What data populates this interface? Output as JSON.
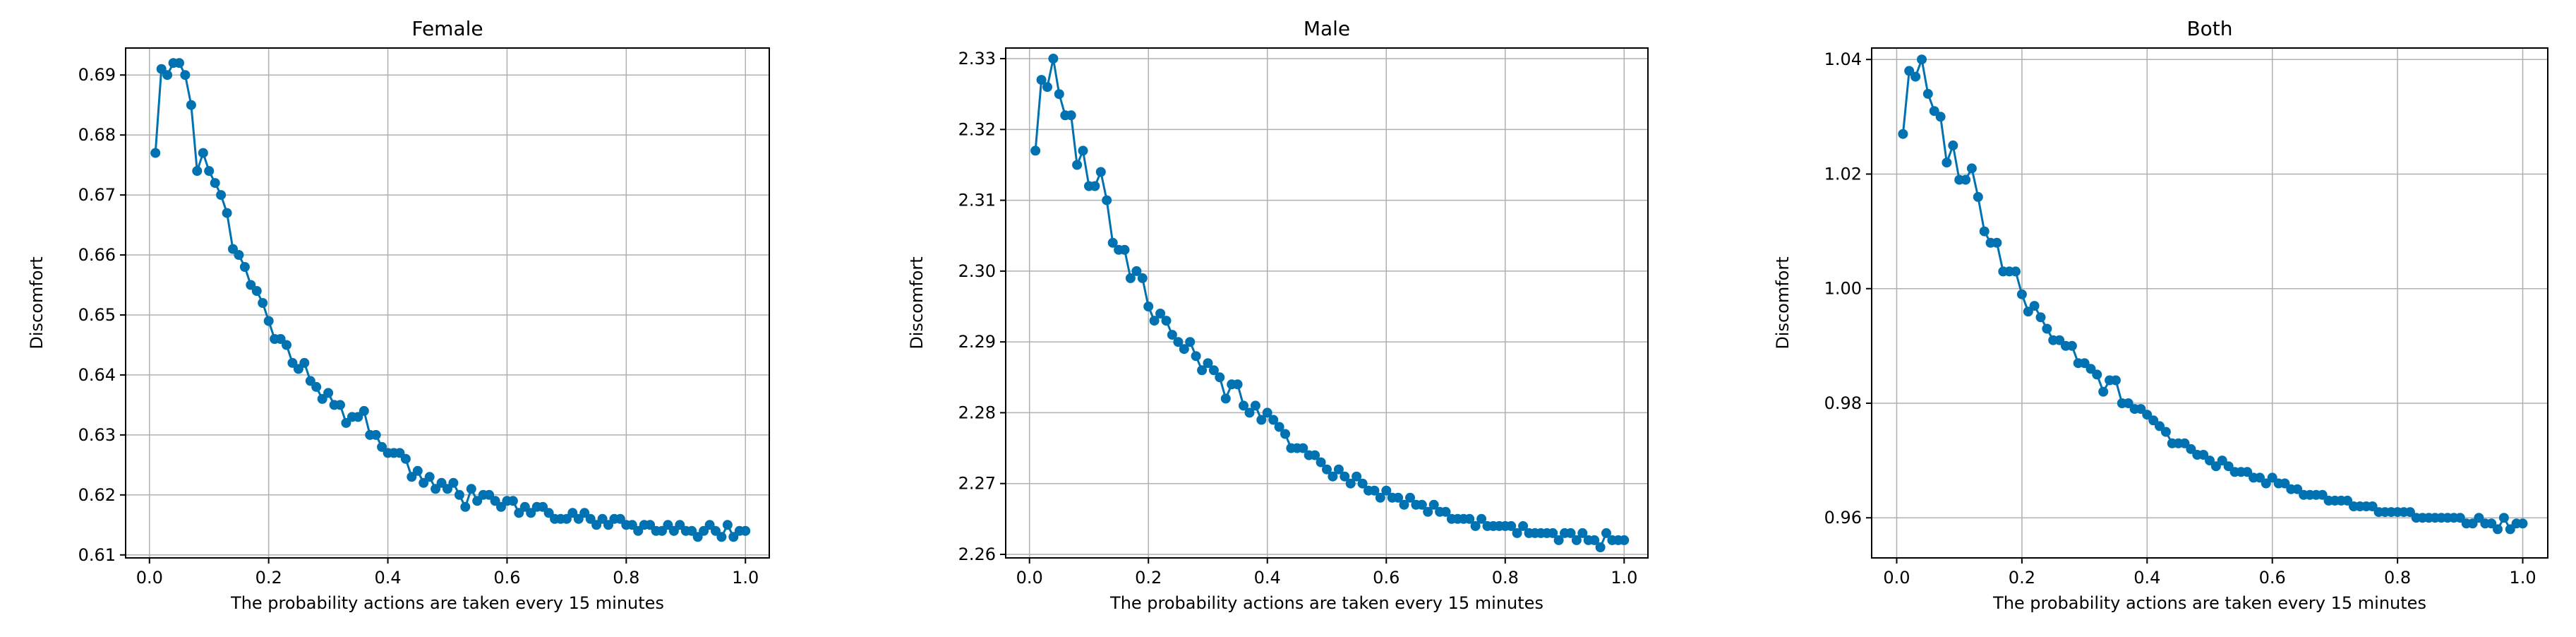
{
  "chart_data": [
    {
      "type": "line",
      "title": "Female",
      "xlabel": "The probability actions are taken every 15 minutes",
      "ylabel": "Discomfort",
      "xlim": [
        -0.04,
        1.04
      ],
      "ylim": [
        0.6095,
        0.6945
      ],
      "xticks": [
        0.0,
        0.2,
        0.4,
        0.6,
        0.8,
        1.0
      ],
      "xtick_labels": [
        "0.0",
        "0.2",
        "0.4",
        "0.6",
        "0.8",
        "1.0"
      ],
      "yticks": [
        0.61,
        0.62,
        0.63,
        0.64,
        0.65,
        0.66,
        0.67,
        0.68,
        0.69
      ],
      "ytick_labels": [
        "0.61",
        "0.62",
        "0.63",
        "0.64",
        "0.65",
        "0.66",
        "0.67",
        "0.68",
        "0.69"
      ],
      "grid": true,
      "color": "#0072b2",
      "x": [
        0.01,
        0.02,
        0.03,
        0.04,
        0.05,
        0.06,
        0.07,
        0.08,
        0.09,
        0.1,
        0.11,
        0.12,
        0.13,
        0.14,
        0.15,
        0.16,
        0.17,
        0.18,
        0.19,
        0.2,
        0.21,
        0.22,
        0.23,
        0.24,
        0.25,
        0.26,
        0.27,
        0.28,
        0.29,
        0.3,
        0.31,
        0.32,
        0.33,
        0.34,
        0.35,
        0.36,
        0.37,
        0.38,
        0.39,
        0.4,
        0.41,
        0.42,
        0.43,
        0.44,
        0.45,
        0.46,
        0.47,
        0.48,
        0.49,
        0.5,
        0.51,
        0.52,
        0.53,
        0.54,
        0.55,
        0.56,
        0.57,
        0.58,
        0.59,
        0.6,
        0.61,
        0.62,
        0.63,
        0.64,
        0.65,
        0.66,
        0.67,
        0.68,
        0.69,
        0.7,
        0.71,
        0.72,
        0.73,
        0.74,
        0.75,
        0.76,
        0.77,
        0.78,
        0.79,
        0.8,
        0.81,
        0.82,
        0.83,
        0.84,
        0.85,
        0.86,
        0.87,
        0.88,
        0.89,
        0.9,
        0.91,
        0.92,
        0.93,
        0.94,
        0.95,
        0.96,
        0.97,
        0.98,
        0.99,
        1.0
      ],
      "y": [
        0.677,
        0.691,
        0.69,
        0.692,
        0.692,
        0.69,
        0.685,
        0.674,
        0.677,
        0.674,
        0.672,
        0.67,
        0.667,
        0.661,
        0.66,
        0.658,
        0.655,
        0.654,
        0.652,
        0.649,
        0.646,
        0.646,
        0.645,
        0.642,
        0.641,
        0.642,
        0.639,
        0.638,
        0.636,
        0.637,
        0.635,
        0.635,
        0.632,
        0.633,
        0.633,
        0.634,
        0.63,
        0.63,
        0.628,
        0.627,
        0.627,
        0.627,
        0.626,
        0.623,
        0.624,
        0.622,
        0.623,
        0.621,
        0.622,
        0.621,
        0.622,
        0.62,
        0.618,
        0.621,
        0.619,
        0.62,
        0.62,
        0.619,
        0.618,
        0.619,
        0.619,
        0.617,
        0.618,
        0.617,
        0.618,
        0.618,
        0.617,
        0.616,
        0.616,
        0.616,
        0.617,
        0.616,
        0.617,
        0.616,
        0.615,
        0.616,
        0.615,
        0.616,
        0.616,
        0.615,
        0.615,
        0.614,
        0.615,
        0.615,
        0.614,
        0.614,
        0.615,
        0.614,
        0.615,
        0.614,
        0.614,
        0.613,
        0.614,
        0.615,
        0.614,
        0.613,
        0.615,
        0.613,
        0.614,
        0.614
      ]
    },
    {
      "type": "line",
      "title": "Male",
      "xlabel": "The probability actions are taken every 15 minutes",
      "ylabel": "Discomfort",
      "xlim": [
        -0.04,
        1.04
      ],
      "ylim": [
        2.2595,
        2.3315
      ],
      "xticks": [
        0.0,
        0.2,
        0.4,
        0.6,
        0.8,
        1.0
      ],
      "xtick_labels": [
        "0.0",
        "0.2",
        "0.4",
        "0.6",
        "0.8",
        "1.0"
      ],
      "yticks": [
        2.26,
        2.27,
        2.28,
        2.29,
        2.3,
        2.31,
        2.32,
        2.33
      ],
      "ytick_labels": [
        "2.26",
        "2.27",
        "2.28",
        "2.29",
        "2.30",
        "2.31",
        "2.32",
        "2.33"
      ],
      "grid": true,
      "color": "#0072b2",
      "x": [
        0.01,
        0.02,
        0.03,
        0.04,
        0.05,
        0.06,
        0.07,
        0.08,
        0.09,
        0.1,
        0.11,
        0.12,
        0.13,
        0.14,
        0.15,
        0.16,
        0.17,
        0.18,
        0.19,
        0.2,
        0.21,
        0.22,
        0.23,
        0.24,
        0.25,
        0.26,
        0.27,
        0.28,
        0.29,
        0.3,
        0.31,
        0.32,
        0.33,
        0.34,
        0.35,
        0.36,
        0.37,
        0.38,
        0.39,
        0.4,
        0.41,
        0.42,
        0.43,
        0.44,
        0.45,
        0.46,
        0.47,
        0.48,
        0.49,
        0.5,
        0.51,
        0.52,
        0.53,
        0.54,
        0.55,
        0.56,
        0.57,
        0.58,
        0.59,
        0.6,
        0.61,
        0.62,
        0.63,
        0.64,
        0.65,
        0.66,
        0.67,
        0.68,
        0.69,
        0.7,
        0.71,
        0.72,
        0.73,
        0.74,
        0.75,
        0.76,
        0.77,
        0.78,
        0.79,
        0.8,
        0.81,
        0.82,
        0.83,
        0.84,
        0.85,
        0.86,
        0.87,
        0.88,
        0.89,
        0.9,
        0.91,
        0.92,
        0.93,
        0.94,
        0.95,
        0.96,
        0.97,
        0.98,
        0.99,
        1.0
      ],
      "y": [
        2.317,
        2.327,
        2.326,
        2.33,
        2.325,
        2.322,
        2.322,
        2.315,
        2.317,
        2.312,
        2.312,
        2.314,
        2.31,
        2.304,
        2.303,
        2.303,
        2.299,
        2.3,
        2.299,
        2.295,
        2.293,
        2.294,
        2.293,
        2.291,
        2.29,
        2.289,
        2.29,
        2.288,
        2.286,
        2.287,
        2.286,
        2.285,
        2.282,
        2.284,
        2.284,
        2.281,
        2.28,
        2.281,
        2.279,
        2.28,
        2.279,
        2.278,
        2.277,
        2.275,
        2.275,
        2.275,
        2.274,
        2.274,
        2.273,
        2.272,
        2.271,
        2.272,
        2.271,
        2.27,
        2.271,
        2.27,
        2.269,
        2.269,
        2.268,
        2.269,
        2.268,
        2.268,
        2.267,
        2.268,
        2.267,
        2.267,
        2.266,
        2.267,
        2.266,
        2.266,
        2.265,
        2.265,
        2.265,
        2.265,
        2.264,
        2.265,
        2.264,
        2.264,
        2.264,
        2.264,
        2.264,
        2.263,
        2.264,
        2.263,
        2.263,
        2.263,
        2.263,
        2.263,
        2.262,
        2.263,
        2.263,
        2.262,
        2.263,
        2.262,
        2.262,
        2.261,
        2.263,
        2.262,
        2.262,
        2.262
      ]
    },
    {
      "type": "line",
      "title": "Both",
      "xlabel": "The probability actions are taken every 15 minutes",
      "ylabel": "Discomfort",
      "xlim": [
        -0.04,
        1.04
      ],
      "ylim": [
        0.953,
        1.042
      ],
      "xticks": [
        0.0,
        0.2,
        0.4,
        0.6,
        0.8,
        1.0
      ],
      "xtick_labels": [
        "0.0",
        "0.2",
        "0.4",
        "0.6",
        "0.8",
        "1.0"
      ],
      "yticks": [
        0.96,
        0.98,
        1.0,
        1.02,
        1.04
      ],
      "ytick_labels": [
        "0.96",
        "0.98",
        "1.00",
        "1.02",
        "1.04"
      ],
      "grid": true,
      "color": "#0072b2",
      "x": [
        0.01,
        0.02,
        0.03,
        0.04,
        0.05,
        0.06,
        0.07,
        0.08,
        0.09,
        0.1,
        0.11,
        0.12,
        0.13,
        0.14,
        0.15,
        0.16,
        0.17,
        0.18,
        0.19,
        0.2,
        0.21,
        0.22,
        0.23,
        0.24,
        0.25,
        0.26,
        0.27,
        0.28,
        0.29,
        0.3,
        0.31,
        0.32,
        0.33,
        0.34,
        0.35,
        0.36,
        0.37,
        0.38,
        0.39,
        0.4,
        0.41,
        0.42,
        0.43,
        0.44,
        0.45,
        0.46,
        0.47,
        0.48,
        0.49,
        0.5,
        0.51,
        0.52,
        0.53,
        0.54,
        0.55,
        0.56,
        0.57,
        0.58,
        0.59,
        0.6,
        0.61,
        0.62,
        0.63,
        0.64,
        0.65,
        0.66,
        0.67,
        0.68,
        0.69,
        0.7,
        0.71,
        0.72,
        0.73,
        0.74,
        0.75,
        0.76,
        0.77,
        0.78,
        0.79,
        0.8,
        0.81,
        0.82,
        0.83,
        0.84,
        0.85,
        0.86,
        0.87,
        0.88,
        0.89,
        0.9,
        0.91,
        0.92,
        0.93,
        0.94,
        0.95,
        0.96,
        0.97,
        0.98,
        0.99,
        1.0
      ],
      "y": [
        1.027,
        1.038,
        1.037,
        1.04,
        1.034,
        1.031,
        1.03,
        1.022,
        1.025,
        1.019,
        1.019,
        1.021,
        1.016,
        1.01,
        1.008,
        1.008,
        1.003,
        1.003,
        1.003,
        0.999,
        0.996,
        0.997,
        0.995,
        0.993,
        0.991,
        0.991,
        0.99,
        0.99,
        0.987,
        0.987,
        0.986,
        0.985,
        0.982,
        0.984,
        0.984,
        0.98,
        0.98,
        0.979,
        0.979,
        0.978,
        0.977,
        0.976,
        0.975,
        0.973,
        0.973,
        0.973,
        0.972,
        0.971,
        0.971,
        0.97,
        0.969,
        0.97,
        0.969,
        0.968,
        0.968,
        0.968,
        0.967,
        0.967,
        0.966,
        0.967,
        0.966,
        0.966,
        0.965,
        0.965,
        0.964,
        0.964,
        0.964,
        0.964,
        0.963,
        0.963,
        0.963,
        0.963,
        0.962,
        0.962,
        0.962,
        0.962,
        0.961,
        0.961,
        0.961,
        0.961,
        0.961,
        0.961,
        0.96,
        0.96,
        0.96,
        0.96,
        0.96,
        0.96,
        0.96,
        0.96,
        0.959,
        0.959,
        0.96,
        0.959,
        0.959,
        0.958,
        0.96,
        0.958,
        0.959,
        0.959
      ]
    }
  ]
}
